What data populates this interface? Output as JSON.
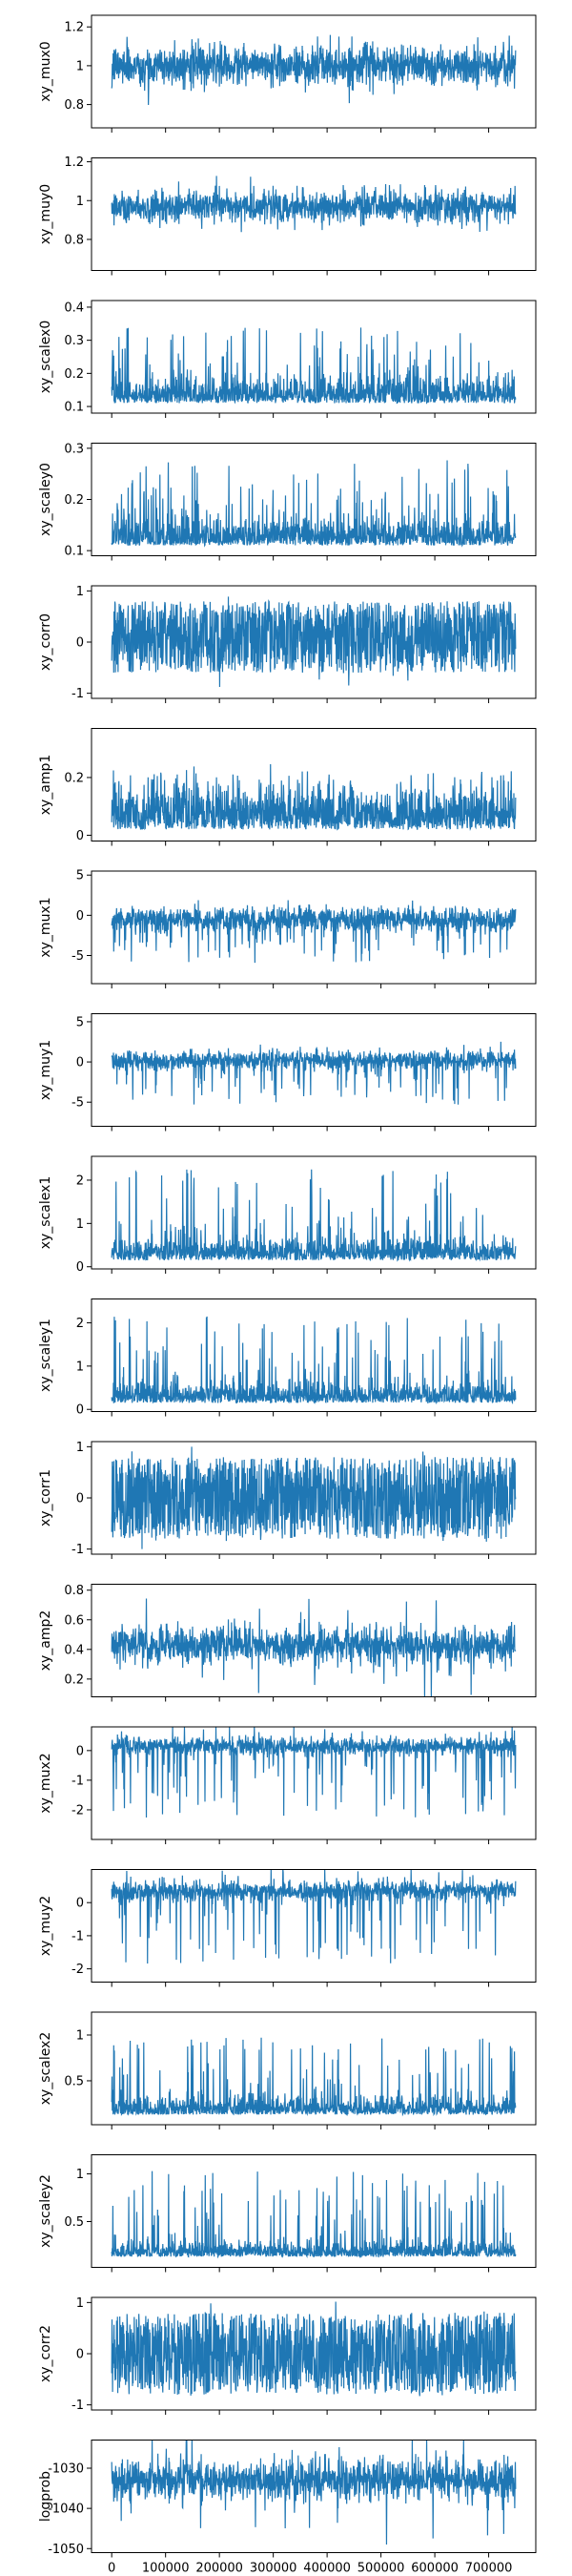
{
  "chart_data": [
    {
      "type": "line",
      "ylabel": "xy_mux0",
      "yticks": [
        0.8,
        1.0,
        1.2
      ],
      "ylim": [
        0.68,
        1.26
      ],
      "base": 1.0,
      "amp": 0.1,
      "spikes": 0.08,
      "shape": "sym"
    },
    {
      "type": "line",
      "ylabel": "xy_muy0",
      "yticks": [
        0.8,
        1.0,
        1.2
      ],
      "ylim": [
        0.64,
        1.22
      ],
      "base": 0.97,
      "amp": 0.08,
      "spikes": 0.1,
      "shape": "sym"
    },
    {
      "type": "line",
      "ylabel": "xy_scalex0",
      "yticks": [
        0.1,
        0.2,
        0.3,
        0.4
      ],
      "ylim": [
        0.08,
        0.42
      ],
      "base": 0.11,
      "amp": 0.06,
      "spikes": 0.25,
      "shape": "up"
    },
    {
      "type": "line",
      "ylabel": "xy_scaley0",
      "yticks": [
        0.1,
        0.2,
        0.3
      ],
      "ylim": [
        0.09,
        0.31
      ],
      "base": 0.11,
      "amp": 0.04,
      "spikes": 0.17,
      "shape": "up"
    },
    {
      "type": "line",
      "ylabel": "xy_corr0",
      "yticks": [
        -1,
        0,
        1
      ],
      "ylim": [
        -1.1,
        1.1
      ],
      "base": 0.1,
      "amp": 0.7,
      "spikes": 0.2,
      "shape": "band"
    },
    {
      "type": "line",
      "ylabel": "xy_amp1",
      "yticks": [
        0.0,
        0.2
      ],
      "ylim": [
        -0.02,
        0.37
      ],
      "base": 0.02,
      "amp": 0.12,
      "spikes": 0.2,
      "shape": "up"
    },
    {
      "type": "line",
      "ylabel": "xy_mux1",
      "yticks": [
        -5,
        0,
        5
      ],
      "ylim": [
        -8.5,
        5.5
      ],
      "base": -0.5,
      "amp": 1.5,
      "spikes": 5.5,
      "shape": "down"
    },
    {
      "type": "line",
      "ylabel": "xy_muy1",
      "yticks": [
        -5,
        0,
        5
      ],
      "ylim": [
        -8.0,
        6.0
      ],
      "base": 0.2,
      "amp": 1.2,
      "spikes": 5.5,
      "shape": "down"
    },
    {
      "type": "line",
      "ylabel": "xy_scalex1",
      "yticks": [
        0,
        1,
        2
      ],
      "ylim": [
        -0.05,
        2.55
      ],
      "base": 0.15,
      "amp": 0.4,
      "spikes": 2.1,
      "shape": "up"
    },
    {
      "type": "line",
      "ylabel": "xy_scaley1",
      "yticks": [
        0,
        1,
        2
      ],
      "ylim": [
        -0.05,
        2.55
      ],
      "base": 0.15,
      "amp": 0.35,
      "spikes": 2.0,
      "shape": "up"
    },
    {
      "type": "line",
      "ylabel": "xy_corr1",
      "yticks": [
        -1,
        0,
        1
      ],
      "ylim": [
        -1.1,
        1.1
      ],
      "base": 0.0,
      "amp": 0.8,
      "spikes": 0.15,
      "shape": "band"
    },
    {
      "type": "line",
      "ylabel": "xy_amp2",
      "yticks": [
        0.2,
        0.4,
        0.6,
        0.8
      ],
      "ylim": [
        0.08,
        0.84
      ],
      "base": 0.43,
      "amp": 0.12,
      "spikes": 0.25,
      "shape": "sym"
    },
    {
      "type": "line",
      "ylabel": "xy_mux2",
      "yticks": [
        -2,
        -1,
        0
      ],
      "ylim": [
        -3.0,
        0.8
      ],
      "base": 0.15,
      "amp": 0.3,
      "spikes": 2.5,
      "shape": "down"
    },
    {
      "type": "line",
      "ylabel": "xy_muy2",
      "yticks": [
        -2,
        -1,
        0
      ],
      "ylim": [
        -2.4,
        1.0
      ],
      "base": 0.35,
      "amp": 0.3,
      "spikes": 2.2,
      "shape": "down"
    },
    {
      "type": "line",
      "ylabel": "xy_scalex2",
      "yticks": [
        0.5,
        1.0
      ],
      "ylim": [
        0.02,
        1.25
      ],
      "base": 0.13,
      "amp": 0.15,
      "spikes": 0.85,
      "shape": "up"
    },
    {
      "type": "line",
      "ylabel": "xy_scaley2",
      "yticks": [
        0.5,
        1.0
      ],
      "ylim": [
        0.02,
        1.2
      ],
      "base": 0.13,
      "amp": 0.12,
      "spikes": 0.9,
      "shape": "up"
    },
    {
      "type": "line",
      "ylabel": "xy_corr2",
      "yticks": [
        -1,
        0,
        1
      ],
      "ylim": [
        -1.1,
        1.1
      ],
      "base": 0.0,
      "amp": 0.8,
      "spikes": 0.15,
      "shape": "band"
    },
    {
      "type": "line",
      "ylabel": "logprob",
      "yticks": [
        -1050,
        -1040,
        -1030
      ],
      "ylim": [
        -1051,
        -1023
      ],
      "base": -1033,
      "amp": 5,
      "spikes": 12,
      "shape": "sym"
    }
  ],
  "x_axis": {
    "xlim": [
      -37500,
      787500
    ],
    "ticks": [
      0,
      100000,
      200000,
      300000,
      400000,
      500000,
      600000,
      700000
    ],
    "data_range": [
      0,
      750000
    ]
  },
  "line_color": "#1f77b4"
}
